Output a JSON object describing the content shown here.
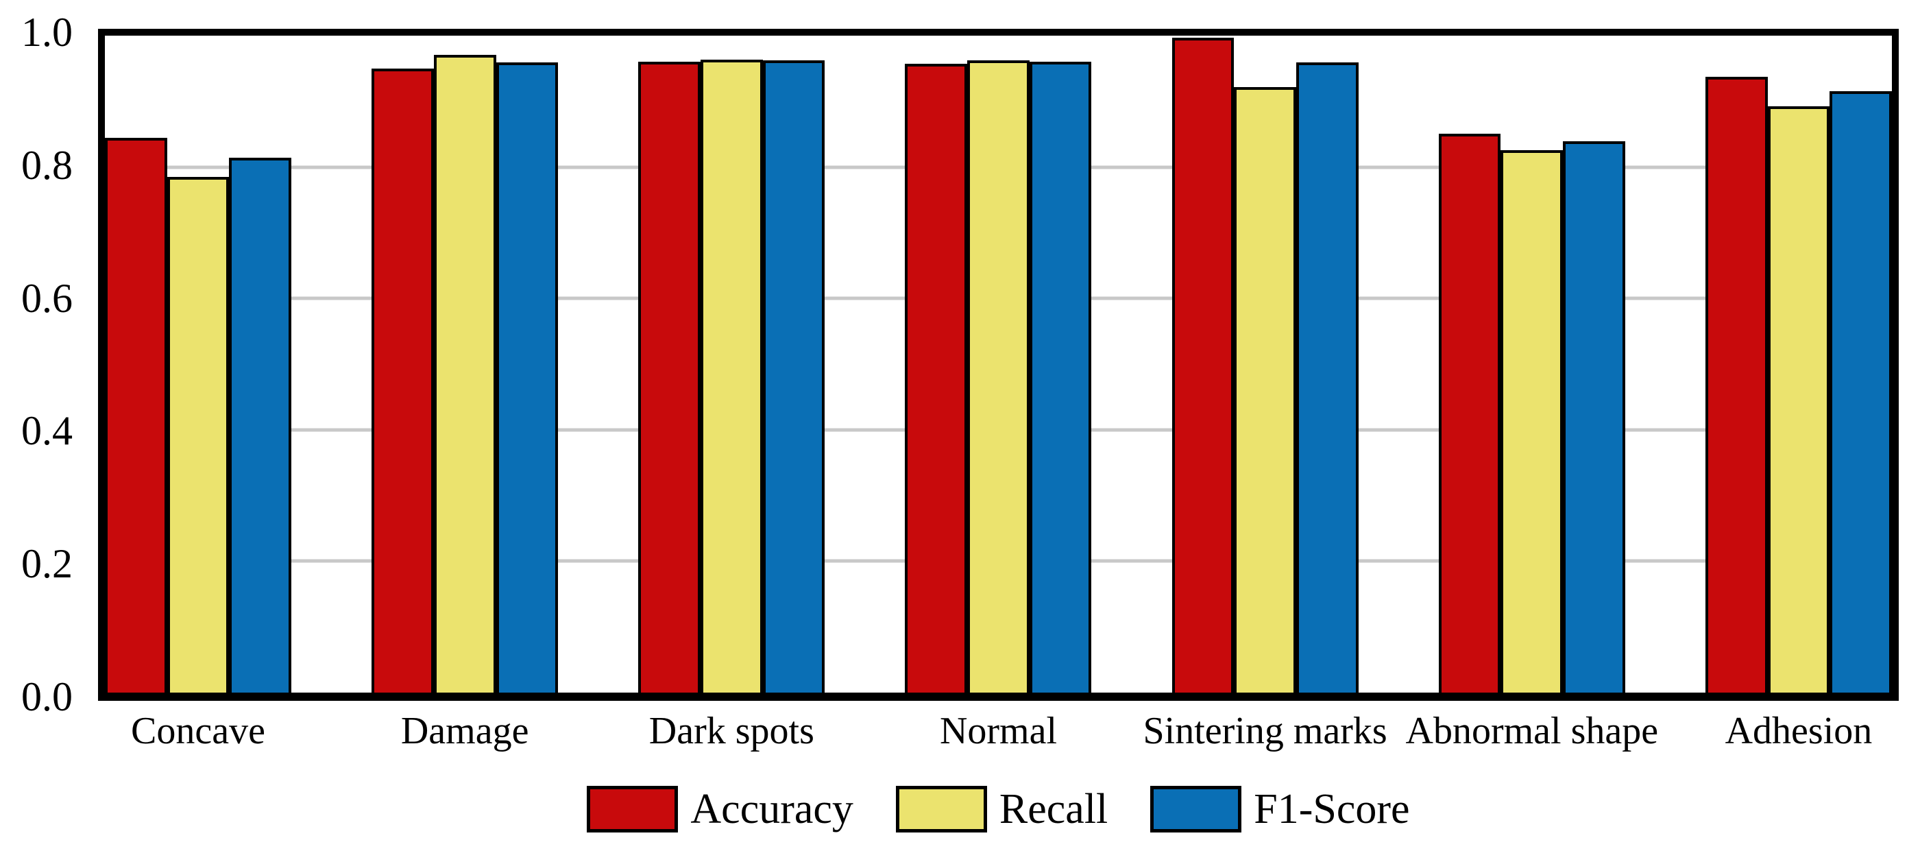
{
  "chart_data": {
    "type": "bar",
    "title": "",
    "xlabel": "",
    "ylabel": "",
    "categories": [
      "Concave",
      "Damage",
      "Dark spots",
      "Normal",
      "Sintering marks",
      "Abnormal shape",
      "Adhesion"
    ],
    "series": [
      {
        "name": "Accuracy",
        "color": "#C80A0C",
        "values": [
          0.845,
          0.95,
          0.96,
          0.957,
          0.997,
          0.851,
          0.937
        ]
      },
      {
        "name": "Recall",
        "color": "#EBE36E",
        "values": [
          0.785,
          0.971,
          0.964,
          0.962,
          0.922,
          0.826,
          0.893
        ]
      },
      {
        "name": "F1-Score",
        "color": "#0A6FB5",
        "values": [
          0.814,
          0.959,
          0.962,
          0.96,
          0.959,
          0.839,
          0.915
        ]
      }
    ],
    "ylim": [
      0.0,
      1.0
    ],
    "ytick_labels": [
      "0.0",
      "0.2",
      "0.4",
      "0.6",
      "0.8",
      "1.0"
    ],
    "ytick_values": [
      0.0,
      0.2,
      0.4,
      0.6,
      0.8,
      1.0
    ],
    "grid": true,
    "gridline_values": [
      0.2,
      0.4,
      0.6,
      0.8
    ],
    "legend_position": "bottom-center",
    "colors": {
      "grid": "#C8C8C8",
      "frame": "#000000",
      "bar_outline": "#000000",
      "background": "#FFFFFF",
      "text": "#000000"
    }
  }
}
